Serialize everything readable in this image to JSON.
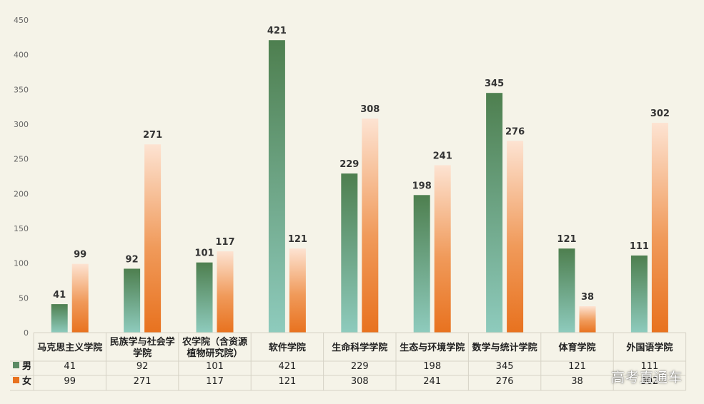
{
  "chart_data": {
    "type": "bar",
    "categories": [
      "马克思主义学院",
      "民族学与社会学学院",
      "农学院（含资源植物研究院）",
      "软件学院",
      "生命科学学院",
      "生态与环境学院",
      "数学与统计学院",
      "体育学院",
      "外国语学院"
    ],
    "category_lines": [
      [
        "马克思主义学院"
      ],
      [
        "民族学与社会学",
        "学院"
      ],
      [
        "农学院（含资源",
        "植物研究院）"
      ],
      [
        "软件学院"
      ],
      [
        "生命科学学院"
      ],
      [
        "生态与环境学院"
      ],
      [
        "数学与统计学院"
      ],
      [
        "体育学院"
      ],
      [
        "外国语学院"
      ]
    ],
    "series": [
      {
        "name": "男",
        "values": [
          41,
          92,
          101,
          421,
          229,
          198,
          345,
          121,
          111
        ]
      },
      {
        "name": "女",
        "values": [
          99,
          271,
          117,
          121,
          308,
          241,
          276,
          38,
          302
        ]
      }
    ],
    "ylim": [
      0,
      450
    ],
    "yticks": [
      0,
      50,
      100,
      150,
      200,
      250,
      300,
      350,
      400,
      450
    ],
    "grid": false,
    "legend": "data-table",
    "colors": {
      "male_top": "#4e7f4f",
      "male_bottom": "#8ecbbd",
      "female_top": "#fde3d2",
      "female_bottom": "#e8721f"
    }
  },
  "watermark": "高考直通车"
}
